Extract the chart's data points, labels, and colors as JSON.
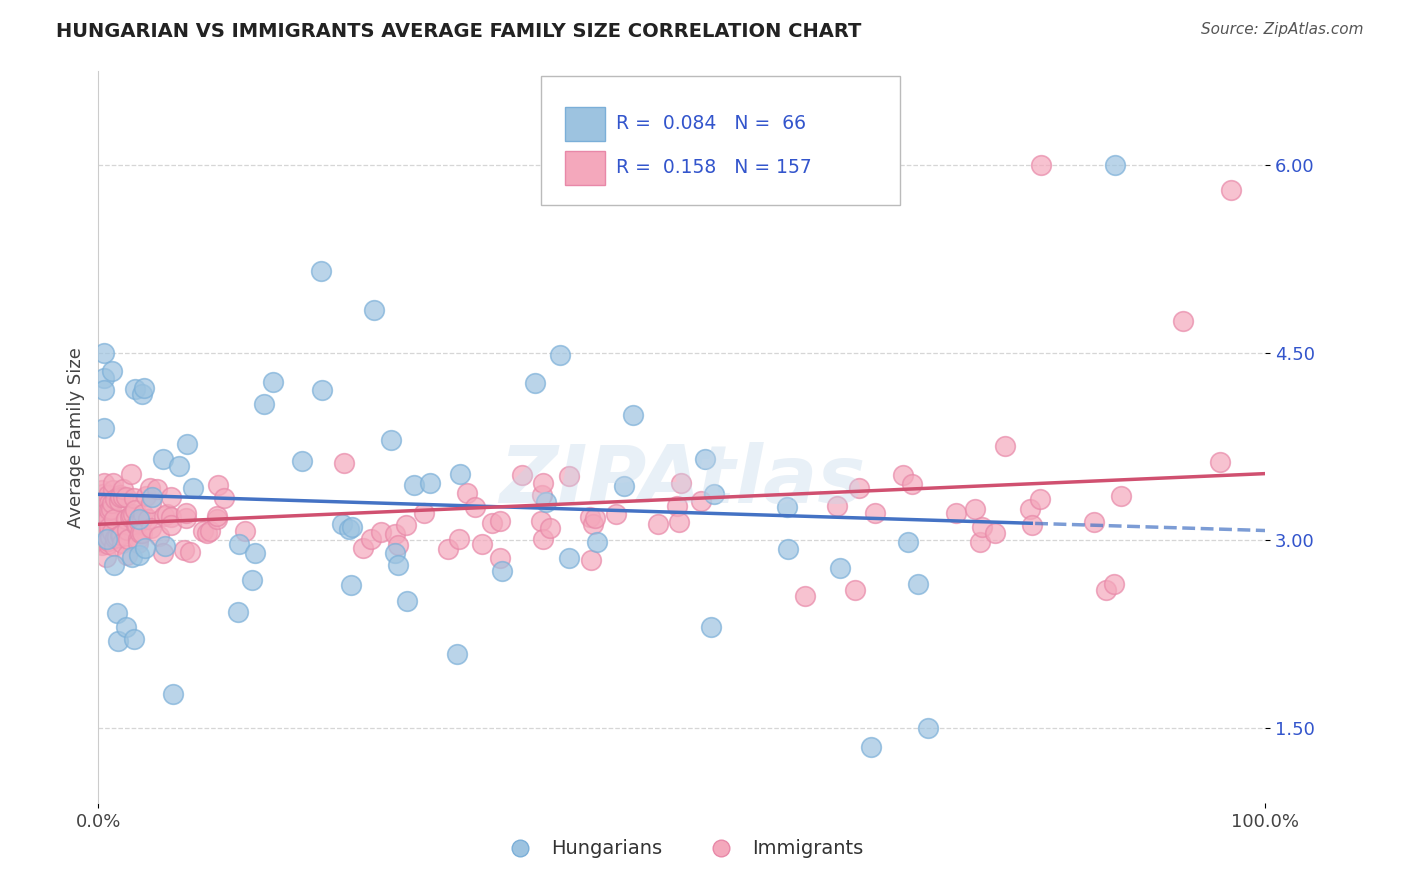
{
  "title": "HUNGARIAN VS IMMIGRANTS AVERAGE FAMILY SIZE CORRELATION CHART",
  "source_text": "Source: ZipAtlas.com",
  "ylabel": "Average Family Size",
  "xlim": [
    0,
    100
  ],
  "ylim": [
    0.9,
    6.75
  ],
  "yticks": [
    1.5,
    3.0,
    4.5,
    6.0
  ],
  "xtick_labels": [
    "0.0%",
    "100.0%"
  ],
  "watermark": "ZIPAtlas",
  "hungarian_color": "#9dc3e0",
  "hungarian_edge": "#7bafd8",
  "immigrant_color": "#f4a8bc",
  "immigrant_edge": "#e888a8",
  "trend_hungarian_color": "#4472c4",
  "trend_immigrant_color": "#d05070",
  "background_color": "#ffffff",
  "grid_color": "#cccccc",
  "R_hungarian": 0.084,
  "R_immigrant": 0.158,
  "N_hungarian": 66,
  "N_immigrant": 157,
  "legend_box_color": "#ffffff",
  "legend_border_color": "#cccccc",
  "legend_text_color": "#3355cc",
  "axis_label_color": "#444444",
  "ytick_color": "#3355cc",
  "title_color": "#222222",
  "source_color": "#555555"
}
